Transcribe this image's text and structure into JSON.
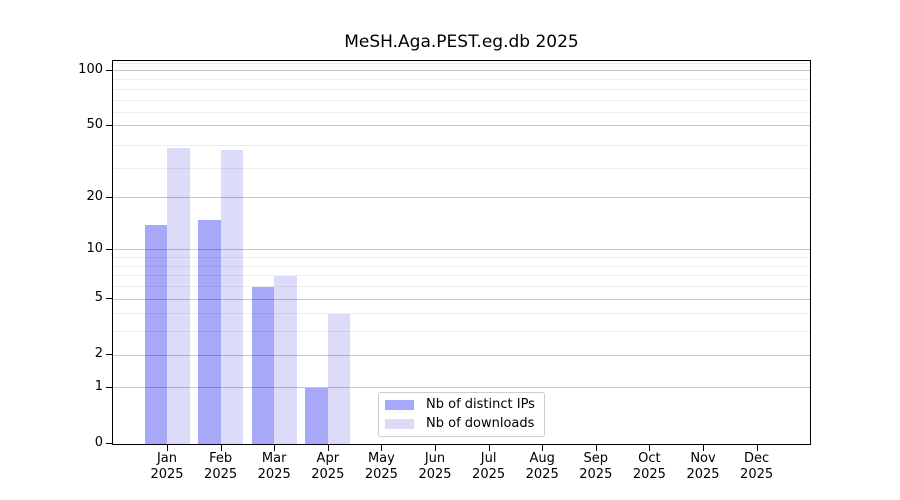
{
  "chart_data": {
    "type": "bar",
    "title": "MeSH.Aga.PEST.eg.db 2025",
    "categories": [
      "Jan",
      "Feb",
      "Mar",
      "Apr",
      "May",
      "Jun",
      "Jul",
      "Aug",
      "Sep",
      "Oct",
      "Nov",
      "Dec"
    ],
    "category_year": "2025",
    "series": [
      {
        "name": "Nb of distinct IPs",
        "color": "#a8a8f8",
        "values": [
          14,
          15,
          6,
          1,
          0,
          0,
          0,
          0,
          0,
          0,
          0,
          0
        ]
      },
      {
        "name": "Nb of downloads",
        "color": "#dcdcf8",
        "values": [
          38,
          37,
          7,
          4,
          0,
          0,
          0,
          0,
          0,
          0,
          0,
          0
        ]
      }
    ],
    "xlabel": "",
    "ylabel": "",
    "y_axis": {
      "scale": "log10(1+value)",
      "tick_values": [
        0,
        1,
        2,
        5,
        10,
        20,
        50,
        100
      ],
      "tick_labels": [
        "0",
        "1",
        "2",
        "5",
        "10",
        "20",
        "50",
        "100"
      ],
      "major_grid_values": [
        1,
        2,
        5,
        10,
        20,
        50,
        100
      ],
      "minor_grid_values": [
        3,
        4,
        6,
        7,
        8,
        9,
        29,
        39,
        59,
        69,
        79,
        89,
        109
      ],
      "top_value": 116
    },
    "legend": {
      "position": "bottom-center",
      "border_color": "#cccccc"
    },
    "grid": {
      "on": true,
      "major_color": "rgba(0,0,0,0.22)",
      "minor_color": "rgba(0,0,0,0.07)"
    },
    "colors": {
      "axis": "#000000",
      "text": "#000000",
      "background": "#ffffff"
    }
  }
}
